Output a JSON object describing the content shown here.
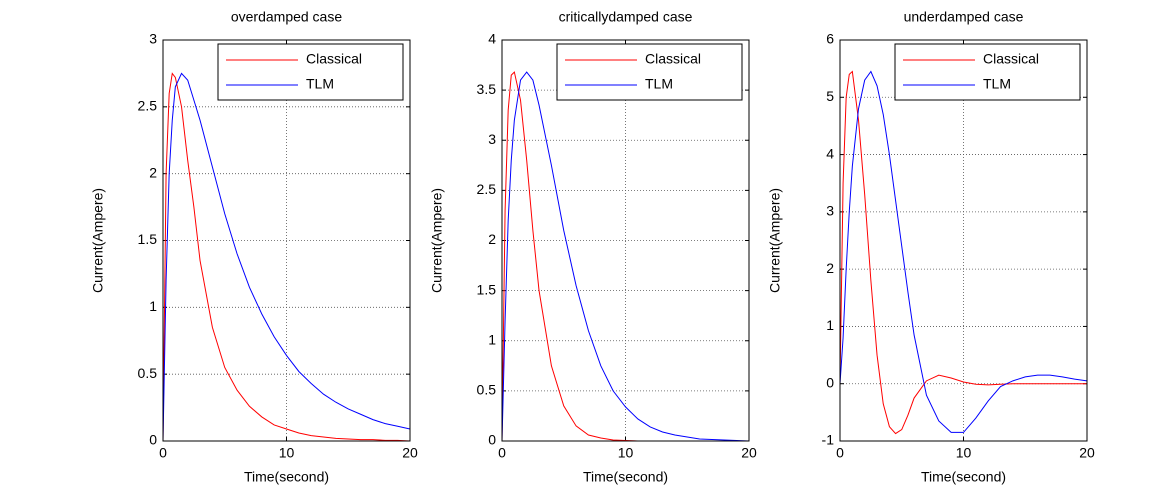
{
  "chart_data": [
    {
      "type": "line",
      "title": "overdamped case",
      "xlabel": "Time(second)",
      "ylabel": "Current(Ampere)",
      "x": [
        0,
        0.25,
        0.5,
        0.75,
        1,
        1.5,
        2,
        2.5,
        3,
        4,
        5,
        6,
        7,
        8,
        9,
        10,
        11,
        12,
        13,
        14,
        15,
        16,
        17,
        18,
        19,
        20
      ],
      "series": [
        {
          "name": "Classical",
          "color": "#ff0000",
          "values": [
            0,
            2.0,
            2.6,
            2.75,
            2.72,
            2.5,
            2.1,
            1.75,
            1.35,
            0.85,
            0.55,
            0.38,
            0.26,
            0.18,
            0.12,
            0.09,
            0.06,
            0.04,
            0.03,
            0.02,
            0.015,
            0.01,
            0.01,
            0.005,
            0.005,
            0
          ]
        },
        {
          "name": "TLM",
          "color": "#0000ff",
          "values": [
            0,
            1.2,
            2.0,
            2.4,
            2.65,
            2.75,
            2.7,
            2.55,
            2.4,
            2.05,
            1.7,
            1.4,
            1.15,
            0.95,
            0.78,
            0.64,
            0.52,
            0.43,
            0.35,
            0.29,
            0.24,
            0.2,
            0.16,
            0.13,
            0.11,
            0.09
          ]
        }
      ],
      "xlim": [
        0,
        20
      ],
      "xticks": [
        0,
        10,
        20
      ],
      "ylim": [
        0,
        3
      ],
      "yticks": [
        0,
        0.5,
        1,
        1.5,
        2,
        2.5,
        3
      ],
      "grid": true,
      "legend": "upper right"
    },
    {
      "type": "line",
      "title": "criticallydamped case",
      "xlabel": "Time(second)",
      "ylabel": "Current(Ampere)",
      "x": [
        0,
        0.25,
        0.5,
        0.75,
        1,
        1.5,
        2,
        2.5,
        3,
        4,
        5,
        6,
        7,
        8,
        9,
        10,
        11,
        12,
        13,
        14,
        15,
        16,
        17,
        18,
        19,
        20
      ],
      "series": [
        {
          "name": "Classical",
          "color": "#ff0000",
          "values": [
            0,
            2.3,
            3.3,
            3.65,
            3.68,
            3.4,
            2.8,
            2.1,
            1.5,
            0.75,
            0.35,
            0.15,
            0.06,
            0.03,
            0.01,
            0.005,
            0,
            0,
            0,
            0,
            0,
            0,
            0,
            0,
            0,
            0
          ]
        },
        {
          "name": "TLM",
          "color": "#0000ff",
          "values": [
            0,
            1.2,
            2.2,
            2.8,
            3.2,
            3.6,
            3.68,
            3.6,
            3.35,
            2.75,
            2.1,
            1.55,
            1.1,
            0.75,
            0.5,
            0.34,
            0.22,
            0.14,
            0.09,
            0.06,
            0.04,
            0.02,
            0.015,
            0.01,
            0.005,
            0
          ]
        }
      ],
      "xlim": [
        0,
        20
      ],
      "xticks": [
        0,
        10,
        20
      ],
      "ylim": [
        0,
        4
      ],
      "yticks": [
        0,
        0.5,
        1,
        1.5,
        2,
        2.5,
        3,
        3.5,
        4
      ],
      "grid": true,
      "legend": "upper right"
    },
    {
      "type": "line",
      "title": "underdamped case",
      "xlabel": "Time(second)",
      "ylabel": "Current(Ampere)",
      "x": [
        0,
        0.25,
        0.5,
        0.75,
        1,
        1.5,
        2,
        2.5,
        3,
        3.5,
        4,
        4.5,
        5,
        5.5,
        6,
        7,
        8,
        9,
        10,
        11,
        12,
        13,
        14,
        15,
        16,
        17,
        18,
        19,
        20
      ],
      "series": [
        {
          "name": "Classical",
          "color": "#ff0000",
          "values": [
            0,
            3.5,
            5.0,
            5.4,
            5.45,
            4.6,
            3.3,
            1.8,
            0.5,
            -0.35,
            -0.75,
            -0.87,
            -0.8,
            -0.55,
            -0.25,
            0.05,
            0.15,
            0.1,
            0.03,
            -0.01,
            -0.02,
            -0.01,
            0,
            0,
            0,
            0,
            0,
            0,
            0
          ]
        },
        {
          "name": "TLM",
          "color": "#0000ff",
          "values": [
            0,
            0.8,
            2.0,
            3.0,
            3.8,
            4.8,
            5.3,
            5.45,
            5.2,
            4.7,
            4.0,
            3.2,
            2.4,
            1.6,
            0.85,
            -0.2,
            -0.65,
            -0.85,
            -0.85,
            -0.6,
            -0.3,
            -0.05,
            0.05,
            0.12,
            0.15,
            0.15,
            0.12,
            0.08,
            0.05
          ]
        }
      ],
      "xlim": [
        0,
        20
      ],
      "xticks": [
        0,
        10,
        20
      ],
      "ylim": [
        -1,
        6
      ],
      "yticks": [
        -1,
        0,
        1,
        2,
        3,
        4,
        5,
        6
      ],
      "grid": true,
      "legend": "upper right"
    }
  ]
}
